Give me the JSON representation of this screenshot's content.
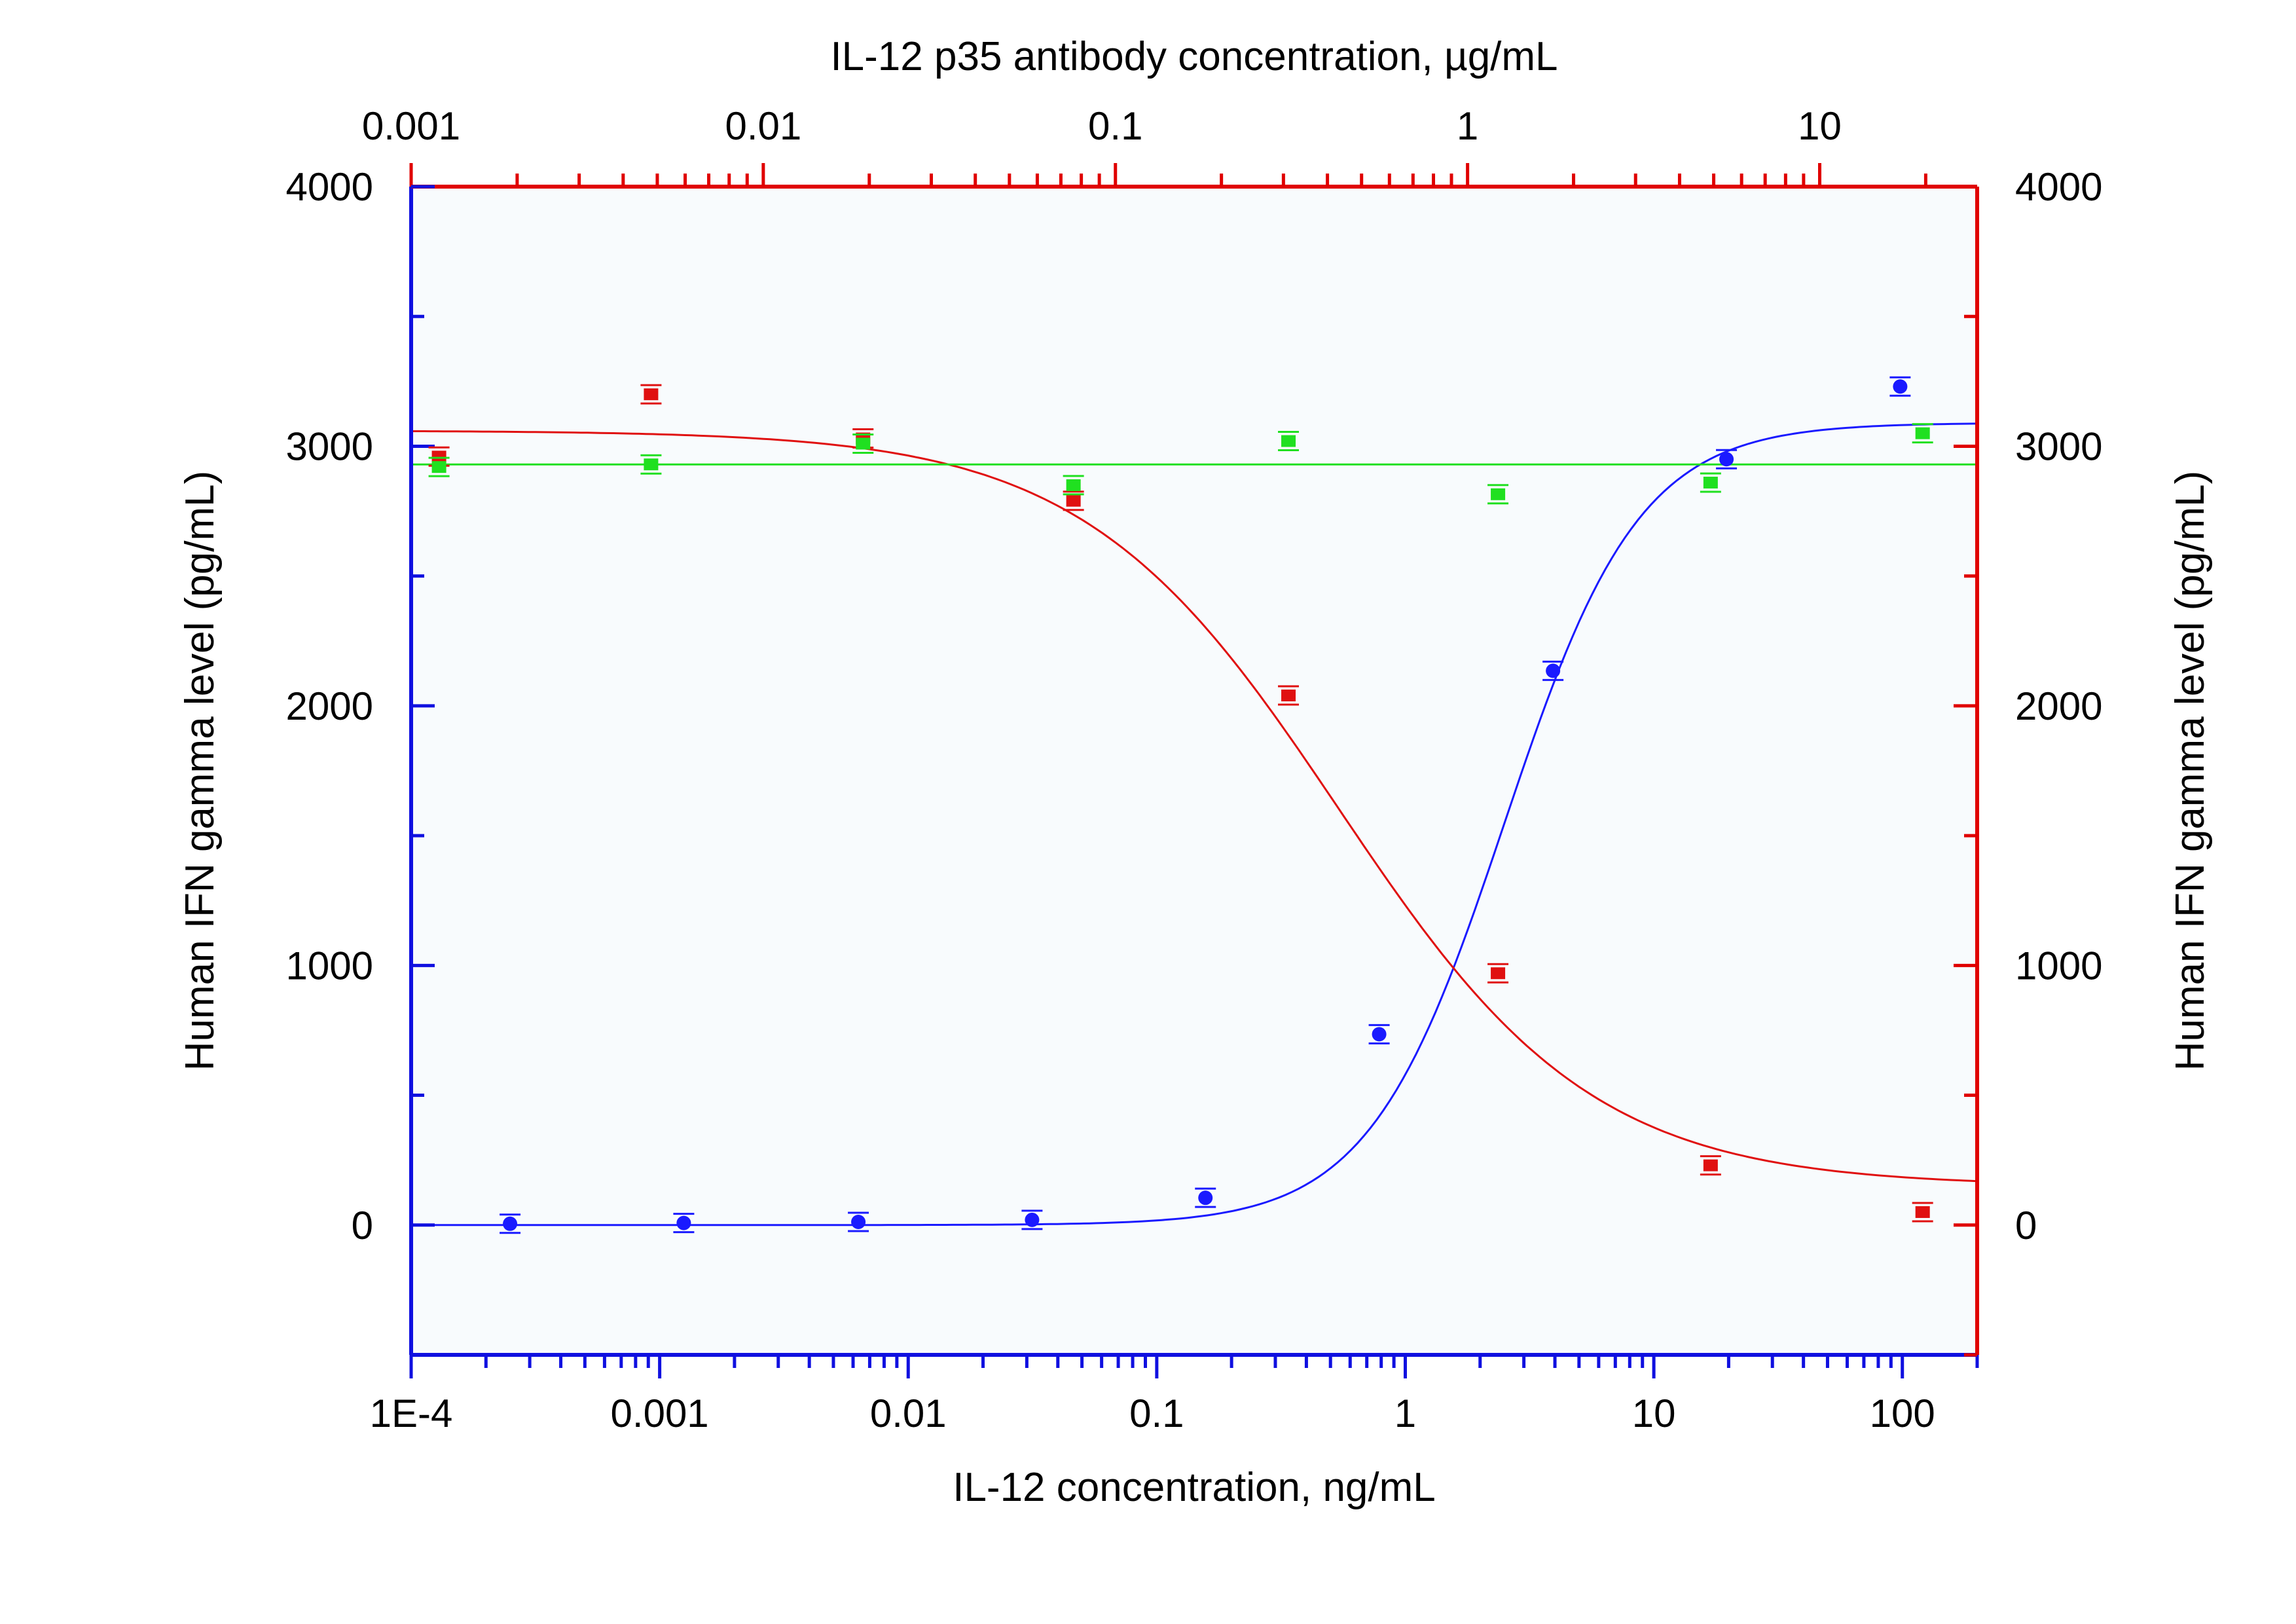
{
  "chart_data": {
    "type": "scatter",
    "x_axis_bottom": {
      "label": "IL-12 concentration, ng/mL",
      "scale": "log",
      "range": [
        0.0001,
        200
      ],
      "ticks": [
        0.0001,
        0.001,
        0.01,
        0.1,
        1,
        10,
        100
      ],
      "tick_labels": [
        "1E-4",
        "0.001",
        "0.01",
        "0.1",
        "1",
        "10",
        "100"
      ],
      "color": "#1010e0"
    },
    "x_axis_top": {
      "label": "IL-12 p35 antibody concentration, µg/mL",
      "scale": "log",
      "range": [
        0.001,
        28
      ],
      "ticks": [
        0.001,
        0.01,
        0.1,
        1,
        10
      ],
      "tick_labels": [
        "0.001",
        "0.01",
        "0.1",
        "1",
        "10"
      ],
      "color": "#e00000"
    },
    "y_axis_left": {
      "label": "Human IFN gamma level (pg/mL)",
      "range": [
        -500,
        4000
      ],
      "ticks": [
        0,
        1000,
        2000,
        3000,
        4000
      ],
      "tick_labels": [
        "0",
        "1000",
        "2000",
        "3000",
        "4000"
      ],
      "color": "#1010e0"
    },
    "y_axis_right": {
      "label": "Human IFN gamma level (pg/mL)",
      "range": [
        -500,
        4000
      ],
      "ticks": [
        0,
        1000,
        2000,
        3000,
        4000
      ],
      "tick_labels": [
        "0",
        "1000",
        "2000",
        "3000",
        "4000"
      ],
      "color": "#e00000"
    },
    "series": [
      {
        "axis": "bottom",
        "marker": "circle",
        "color": "#1a1aff",
        "x": [
          0.00025,
          0.00125,
          0.0063,
          0.0315,
          0.157,
          0.785,
          3.93,
          19.6,
          98
        ],
        "y": [
          5,
          8,
          12,
          20,
          105,
          735,
          2135,
          2950,
          3230
        ],
        "fit": {
          "model": "4PL",
          "bottom": 0,
          "top": 3090,
          "ec50": 2.5,
          "hill": 1.6
        }
      },
      {
        "axis": "top",
        "marker": "square",
        "color": "#e01010",
        "x": [
          0.0012,
          0.0048,
          0.0192,
          0.076,
          0.31,
          1.22,
          4.9,
          19.6
        ],
        "y": [
          2960,
          3200,
          3030,
          2790,
          2040,
          970,
          230,
          50
        ],
        "fit": {
          "model": "4PL",
          "bottom": 150,
          "top": 3060,
          "ec50": 0.43,
          "hill": -1.2
        }
      },
      {
        "axis": "top",
        "marker": "square",
        "color": "#20e020",
        "x": [
          0.0012,
          0.0048,
          0.0192,
          0.076,
          0.31,
          1.22,
          4.9,
          19.6
        ],
        "y": [
          2920,
          2930,
          3010,
          2850,
          3020,
          2815,
          2860,
          3050
        ],
        "fit": {
          "model": "constant",
          "value": 2930
        }
      }
    ],
    "grid": false,
    "legend": "none"
  }
}
